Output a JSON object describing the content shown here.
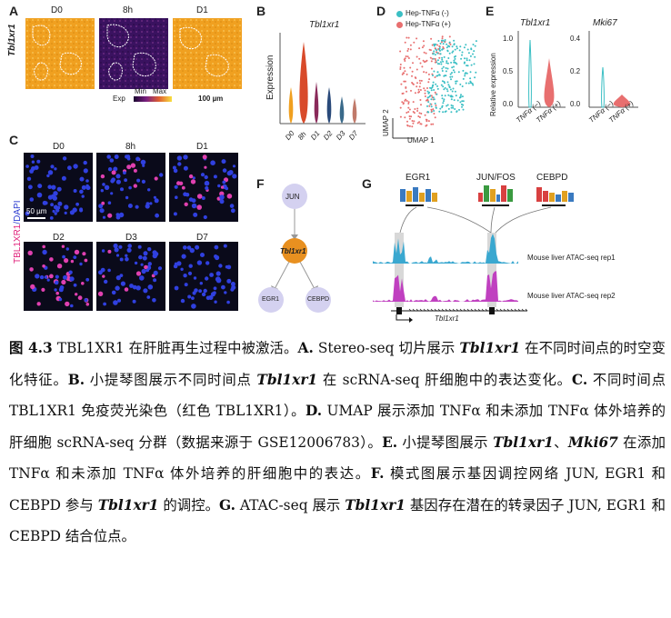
{
  "panels": {
    "A": {
      "label": "A",
      "gene": "Tbl1xr1",
      "times": [
        "D0",
        "8h",
        "D1"
      ],
      "legend_exp": "Exp",
      "legend_min": "Min",
      "legend_max": "Max",
      "scale": "100 µm"
    },
    "B": {
      "label": "B",
      "title": "Tbl1xr1",
      "ylabel": "Expression",
      "groups": [
        "D0",
        "8h",
        "D1",
        "D2",
        "D3",
        "D7"
      ]
    },
    "C": {
      "label": "C",
      "side_label_red": "TBL1XR1",
      "side_label_blue": "/DAPI",
      "times_top": [
        "D0",
        "8h",
        "D1"
      ],
      "times_bottom": [
        "D2",
        "D3",
        "D7"
      ],
      "scale": "50 µm"
    },
    "D": {
      "label": "D",
      "legend": [
        "Hep-TNFα (-)",
        "Hep-TNFα (+)"
      ],
      "xlabel": "UMAP 1",
      "ylabel": "UMAP 2",
      "colors": [
        "#3bbfc4",
        "#e86f6f"
      ]
    },
    "E": {
      "label": "E",
      "genes": [
        "Tbl1xr1",
        "Mki67"
      ],
      "ylabel": "Relative expression",
      "ticks_left": [
        "1.0",
        "0.5",
        "0.0"
      ],
      "ticks_right": [
        "0.4",
        "0.2",
        "0.0"
      ],
      "groups": [
        "TNFα (−)",
        "TNFα (+)"
      ]
    },
    "F": {
      "label": "F",
      "nodes": {
        "jun": "JUN",
        "center": "Tbl1xr1",
        "egr1": "EGR1",
        "cebpd": "CEBPD"
      }
    },
    "G": {
      "label": "G",
      "motifs": [
        "EGR1",
        "JUN/FOS",
        "CEBPD"
      ],
      "tracks": [
        "Mouse liver ATAC-seq rep1",
        "Mouse liver ATAC-seq rep2"
      ],
      "gene": "Tbl1xr1"
    }
  },
  "caption": {
    "fig_num": "图 4.3",
    "title": " TBL1XR1 在肝脏再生过程中被激活。",
    "A_label": "A.",
    "A_pre": " Stereo-seq 切片展示 ",
    "A_gene": "Tbl1xr1",
    "A_post": " 在不同时间点的时空变化特征。",
    "B_label": "B.",
    "B_pre": " 小提琴图展示不同时间点 ",
    "B_gene": "Tbl1xr1",
    "B_post": " 在 scRNA-seq 肝细胞中的表达变化。",
    "C_label": "C.",
    "C_text": " 不同时间点 TBL1XR1 免疫荧光染色（红色 TBL1XR1）。",
    "D_label": "D.",
    "D_text": " UMAP 展示添加 TNFα 和未添加 TNFα 体外培养的肝细胞 scRNA-seq 分群（数据来源于 GSE12006783）。",
    "E_label": "E.",
    "E_pre": " 小提琴图展示 ",
    "E_gene1": "Tbl1xr1",
    "E_sep": "、",
    "E_gene2": "Mki67",
    "E_post": " 在添加 TNFα 和未添加 TNFα 体外培养的肝细胞中的表达。",
    "F_label": "F.",
    "F_pre": " 模式图展示基因调控网络 JUN, EGR1 和 CEBPD 参与 ",
    "F_gene": "Tbl1xr1",
    "F_post": " 的调控。",
    "G_label": "G.",
    "G_pre": " ATAC-seq 展示 ",
    "G_gene": "Tbl1xr1",
    "G_post": " 基因存在潜在的转录因子 JUN, EGR1 和 CEBPD 结合位点。"
  }
}
